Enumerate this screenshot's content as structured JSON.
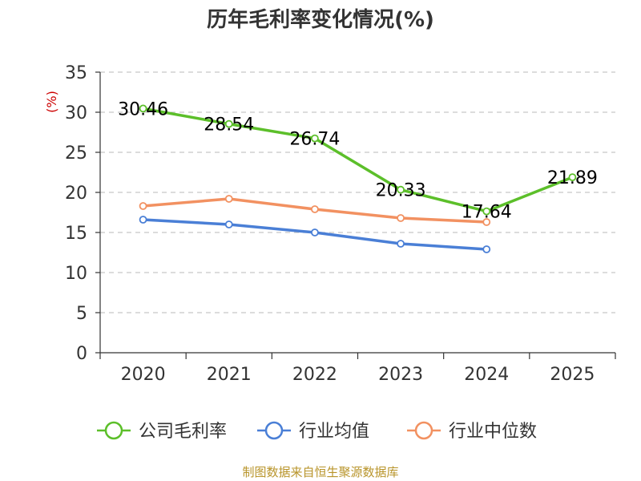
{
  "chart_data": {
    "type": "line",
    "title": "历年毛利率变化情况(%)",
    "ylabel": "(%)",
    "xlabel": "",
    "categories": [
      "2020",
      "2021",
      "2022",
      "2023",
      "2024",
      "2025"
    ],
    "ylim": [
      0,
      35
    ],
    "yticks": [
      0,
      5,
      10,
      15,
      20,
      25,
      30,
      35
    ],
    "grid": true,
    "legend_position": "bottom",
    "series": [
      {
        "name": "公司毛利率",
        "color": "#5cbf2a",
        "values": [
          30.46,
          28.54,
          26.74,
          20.33,
          17.64,
          21.89
        ],
        "labels": [
          "30.46",
          "28.54",
          "26.74",
          "20.33",
          "17.64",
          "21.89"
        ]
      },
      {
        "name": "行业均值",
        "color": "#4a7fd6",
        "values": [
          16.6,
          16.0,
          15.0,
          13.6,
          12.9,
          null
        ]
      },
      {
        "name": "行业中位数",
        "color": "#f29161",
        "values": [
          18.3,
          19.2,
          17.9,
          16.8,
          16.3,
          null
        ]
      }
    ],
    "source": "制图数据来自恒生聚源数据库"
  }
}
